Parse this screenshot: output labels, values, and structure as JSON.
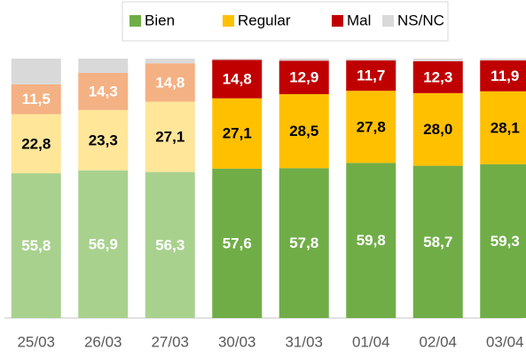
{
  "chart_data": {
    "type": "stacked_bar",
    "categories": [
      "25/03",
      "26/03",
      "27/03",
      "30/03",
      "31/03",
      "01/04",
      "02/04",
      "03/04"
    ],
    "ylim": [
      0,
      100
    ],
    "legend": "top",
    "series": [
      {
        "name": "Bien",
        "color": "#70ad47",
        "colors": [
          "#a9d18e",
          "#a9d18e",
          "#a9d18e",
          "#70ad47",
          "#70ad47",
          "#70ad47",
          "#70ad47",
          "#70ad47"
        ],
        "label_color": "#ffffff",
        "values": [
          55.8,
          56.9,
          56.3,
          57.6,
          57.8,
          59.8,
          58.7,
          59.3
        ],
        "value_labels": [
          "55,8",
          "56,9",
          "56,3",
          "57,6",
          "57,8",
          "59,8",
          "58,7",
          "59,3"
        ]
      },
      {
        "name": "Regular",
        "color": "#ffc000",
        "colors": [
          "#ffe699",
          "#ffe699",
          "#ffe699",
          "#ffc000",
          "#ffc000",
          "#ffc000",
          "#ffc000",
          "#ffc000"
        ],
        "label_color": "#000000",
        "values": [
          22.8,
          23.3,
          27.1,
          27.1,
          28.5,
          27.8,
          28.0,
          28.1
        ],
        "value_labels": [
          "22,8",
          "23,3",
          "27,1",
          "27,1",
          "28,5",
          "27,8",
          "28,0",
          "28,1"
        ]
      },
      {
        "name": "Mal",
        "color": "#c00000",
        "colors": [
          "#f4b183",
          "#f4b183",
          "#f4b183",
          "#c00000",
          "#c00000",
          "#c00000",
          "#c00000",
          "#c00000"
        ],
        "label_color": "#ffffff",
        "values": [
          11.5,
          14.3,
          14.8,
          14.8,
          12.9,
          11.7,
          12.3,
          11.9
        ],
        "value_labels": [
          "11,5",
          "14,3",
          "14,8",
          "14,8",
          "12,9",
          "11,7",
          "12,3",
          "11,9"
        ]
      },
      {
        "name": "NS/NC",
        "color": "#d9d9d9",
        "colors": [
          "#d9d9d9",
          "#d9d9d9",
          "#d9d9d9",
          "#d9d9d9",
          "#d9d9d9",
          "#d9d9d9",
          "#d9d9d9",
          "#d9d9d9"
        ],
        "values": [
          9.9,
          5.5,
          1.8,
          0.5,
          0.8,
          0.7,
          1.0,
          0.7
        ]
      }
    ]
  }
}
